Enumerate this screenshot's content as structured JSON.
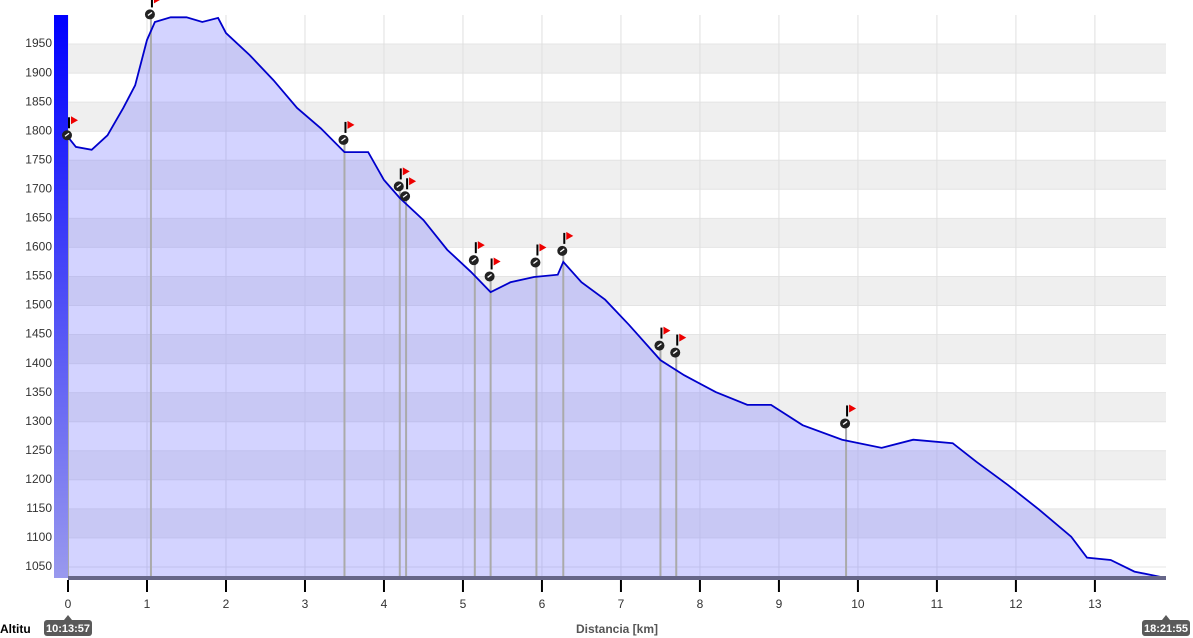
{
  "chart_data": {
    "type": "area",
    "y_label": "Altitu",
    "x_label": "Distancia [km]",
    "start_time": "10:13:57",
    "end_time": "18:21:55",
    "x": [
      0,
      0.1,
      0.3,
      0.5,
      0.7,
      0.85,
      1.0,
      1.1,
      1.3,
      1.5,
      1.7,
      1.9,
      2.0,
      2.3,
      2.6,
      2.9,
      3.2,
      3.5,
      3.8,
      4.0,
      4.2,
      4.5,
      4.8,
      5.1,
      5.35,
      5.6,
      5.9,
      6.2,
      6.27,
      6.5,
      6.8,
      7.1,
      7.5,
      7.8,
      8.2,
      8.6,
      8.9,
      9.3,
      9.8,
      10.3,
      10.7,
      11.2,
      11.5,
      11.9,
      12.3,
      12.7,
      12.9,
      13.2,
      13.5,
      13.9
    ],
    "series": [
      {
        "name": "Altitud",
        "color": "#0000cc",
        "values": [
          1790,
          1773,
          1768,
          1793,
          1840,
          1879,
          1957,
          1988,
          1996,
          1996,
          1988,
          1995,
          1969,
          1931,
          1888,
          1840,
          1805,
          1764,
          1764,
          1716,
          1685,
          1647,
          1596,
          1558,
          1523,
          1540,
          1549,
          1553,
          1575,
          1540,
          1510,
          1467,
          1406,
          1380,
          1351,
          1329,
          1329,
          1294,
          1269,
          1255,
          1269,
          1263,
          1231,
          1191,
          1148,
          1102,
          1066,
          1062,
          1042,
          1031
        ]
      }
    ],
    "waypoints": {
      "x": [
        0,
        1.05,
        3.5,
        4.2,
        4.28,
        5.15,
        5.35,
        5.93,
        6.27,
        7.5,
        7.7,
        9.85
      ],
      "values": [
        1793,
        2001,
        1785,
        1705,
        1688,
        1578,
        1550,
        1574,
        1594,
        1431,
        1419,
        1297
      ]
    },
    "xlim": [
      0,
      13.9
    ],
    "ylim": [
      1031,
      2000
    ],
    "xticks": [
      0,
      1,
      2,
      3,
      4,
      5,
      6,
      7,
      8,
      9,
      10,
      11,
      12,
      13
    ],
    "yticks": [
      1050,
      1100,
      1150,
      1200,
      1250,
      1300,
      1350,
      1400,
      1450,
      1500,
      1550,
      1600,
      1650,
      1700,
      1750,
      1800,
      1850,
      1900,
      1950
    ],
    "grid": true
  }
}
